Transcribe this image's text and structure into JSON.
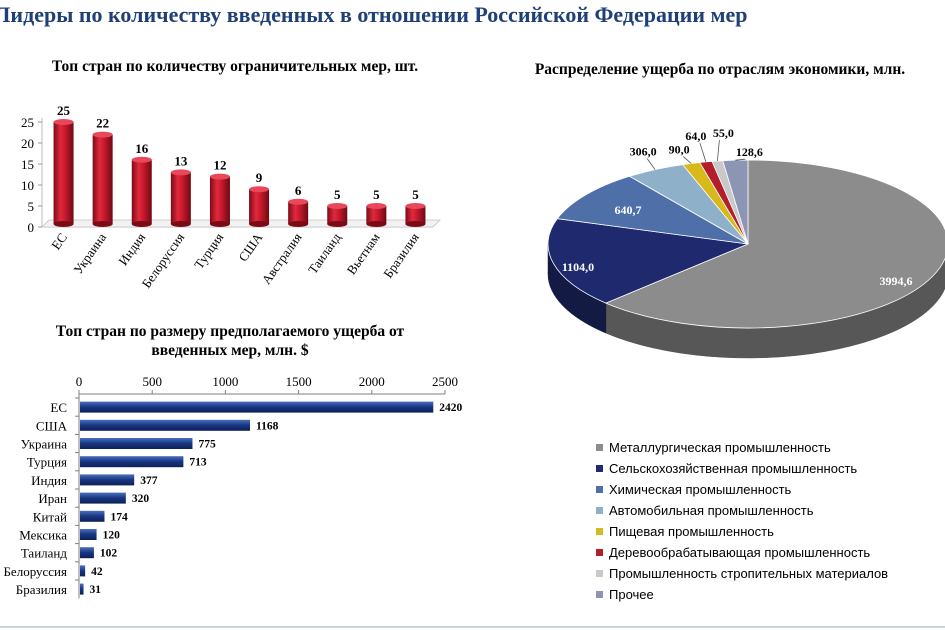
{
  "page": {
    "title": "Лидеры по количеству введенных в отношении Российской Федерации мер"
  },
  "chart_data": [
    {
      "type": "bar",
      "title": "Топ стран по количеству ограничительных мер, шт.",
      "categories": [
        "ЕС",
        "Украина",
        "Индия",
        "Белоруссия",
        "Турция",
        "США",
        "Австралия",
        "Таиланд",
        "Вьетнам",
        "Бразилия"
      ],
      "values": [
        25,
        22,
        16,
        13,
        12,
        9,
        6,
        5,
        5,
        5
      ],
      "ylim": [
        0,
        25
      ],
      "yticks": [
        0,
        5,
        10,
        15,
        20,
        25
      ],
      "xlabel": "",
      "ylabel": "",
      "color": "#c0182a"
    },
    {
      "type": "bar",
      "orientation": "horizontal",
      "title": "Топ стран по размеру предполагаемого ущерба от введенных мер, млн. $",
      "categories": [
        "ЕС",
        "США",
        "Украина",
        "Турция",
        "Индия",
        "Иран",
        "Китай",
        "Мексика",
        "Таиланд",
        "Белоруссия",
        "Бразилия"
      ],
      "values": [
        2420,
        1168,
        775,
        713,
        377,
        320,
        174,
        120,
        102,
        42,
        31
      ],
      "xlim": [
        0,
        2500
      ],
      "xticks": [
        0,
        500,
        1000,
        1500,
        2000,
        2500
      ],
      "xlabel": "",
      "ylabel": "",
      "color": "#1a3d8f"
    },
    {
      "type": "pie",
      "title": "Распределение ущерба по отраслям экономики, млн.",
      "labels": [
        "Металлургическая промышленность",
        "Сельскохозяйственная промышленность",
        "Химическая промышленность",
        "Автомобильная промышленность",
        "Пищевая промышленность",
        "Деревообрабатывающая промышленность",
        "Промышленность стропительных материалов",
        "Прочее"
      ],
      "values": [
        3994.6,
        1104.0,
        640.7,
        306.0,
        90.0,
        64.0,
        55.0,
        128.6
      ],
      "value_labels": [
        "3994,6",
        "1104,0",
        "640,7",
        "306,0",
        "90,0",
        "64,0",
        "55,0",
        "128,6"
      ],
      "colors": [
        "#8c8c8c",
        "#1f2a6e",
        "#4f6fa8",
        "#8fb0c9",
        "#d8b91b",
        "#b41e2b",
        "#c9c9c9",
        "#8d95b4"
      ],
      "legend_position": "bottom"
    }
  ]
}
